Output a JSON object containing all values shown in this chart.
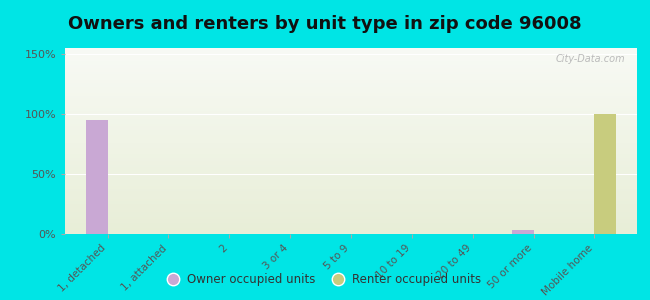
{
  "title": "Owners and renters by unit type in zip code 96008",
  "categories": [
    "1, detached",
    "1, attached",
    "2",
    "3 or 4",
    "5 to 9",
    "10 to 19",
    "20 to 49",
    "50 or more",
    "Mobile home"
  ],
  "owner_values": [
    95,
    0,
    0,
    0,
    0,
    0,
    0,
    3,
    0
  ],
  "renter_values": [
    0,
    0,
    0,
    0,
    0,
    0,
    0,
    0,
    100
  ],
  "owner_color": "#c9a8d4",
  "renter_color": "#c8cc7e",
  "background_color": "#00e5e5",
  "title_fontsize": 13,
  "ylabel_ticks": [
    "0%",
    "50%",
    "100%",
    "150%"
  ],
  "ytick_values": [
    0,
    50,
    100,
    150
  ],
  "ylim": [
    0,
    155
  ],
  "bar_width": 0.35,
  "watermark": "City-Data.com"
}
